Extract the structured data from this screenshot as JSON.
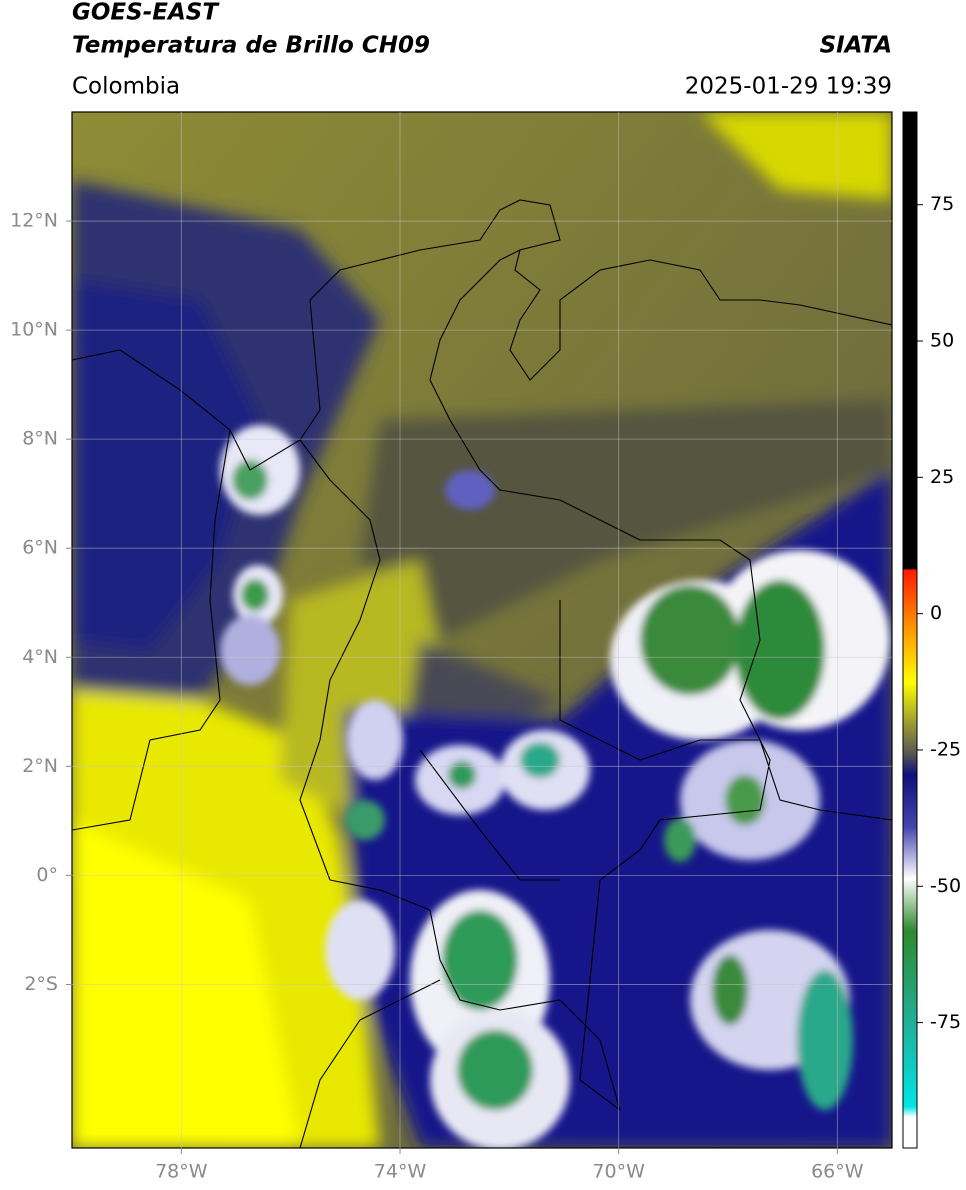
{
  "chart_data": {
    "type": "map",
    "title": "GOES-EAST",
    "subtitle": "Temperatura de Brillo CH09",
    "source": "SIATA",
    "region": "Colombia",
    "datetime": "2025-01-29 19:39",
    "xlim": [
      -80,
      -65
    ],
    "ylim": [
      -5,
      14
    ],
    "xticks": [
      {
        "value": -78,
        "label": "78°W"
      },
      {
        "value": -74,
        "label": "74°W"
      },
      {
        "value": -70,
        "label": "70°W"
      },
      {
        "value": -66,
        "label": "66°W"
      }
    ],
    "yticks": [
      {
        "value": -2,
        "label": "2°S"
      },
      {
        "value": 0,
        "label": "0°"
      },
      {
        "value": 2,
        "label": "2°N"
      },
      {
        "value": 4,
        "label": "4°N"
      },
      {
        "value": 6,
        "label": "6°N"
      },
      {
        "value": 8,
        "label": "8°N"
      },
      {
        "value": 10,
        "label": "10°N"
      },
      {
        "value": 12,
        "label": "12°N"
      }
    ],
    "grid": true,
    "clim": [
      -98,
      92
    ],
    "cticks": [
      75,
      50,
      25,
      0,
      -25,
      -50,
      -75
    ]
  }
}
